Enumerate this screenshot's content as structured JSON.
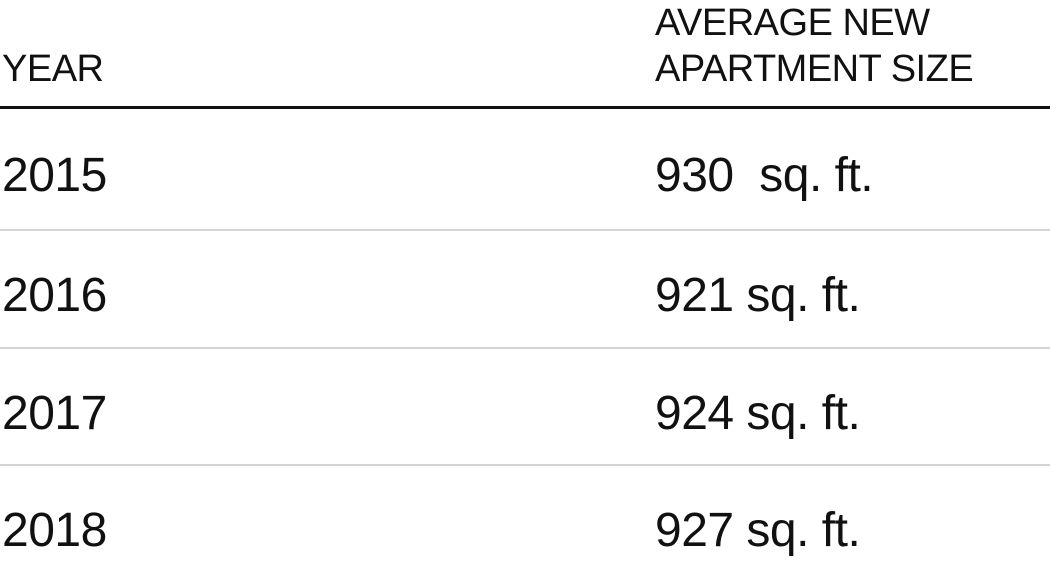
{
  "chart_data": {
    "type": "table",
    "columns": [
      "YEAR",
      "AVERAGE NEW APARTMENT SIZE"
    ],
    "header_lines": [
      [
        "YEAR"
      ],
      [
        "AVERAGE NEW",
        "APARTMENT SIZE"
      ]
    ],
    "rows": [
      {
        "year": "2015",
        "size": "930  sq. ft."
      },
      {
        "year": "2016",
        "size": "921 sq. ft."
      },
      {
        "year": "2017",
        "size": "924 sq. ft."
      },
      {
        "year": "2018",
        "size": "927 sq. ft."
      }
    ],
    "values": [
      930,
      921,
      924,
      927
    ],
    "unit": "sq. ft.",
    "colors": {
      "text": "#111111",
      "header_rule": "#111111",
      "row_divider": "#d4d4d4"
    }
  }
}
